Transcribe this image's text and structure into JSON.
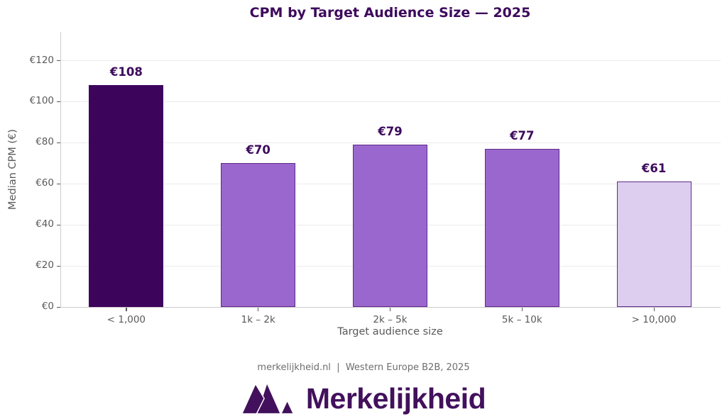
{
  "chart_data": {
    "type": "bar",
    "title": "CPM by Target Audience Size — 2025",
    "categories": [
      "< 1,000",
      "1k – 2k",
      "2k – 5k",
      "5k – 10k",
      "> 10,000"
    ],
    "values": [
      108,
      70,
      79,
      77,
      61
    ],
    "data_labels": [
      "€108",
      "€70",
      "€79",
      "€77",
      "€61"
    ],
    "xlabel": "Target audience size",
    "ylabel": "Median CPM (€)",
    "ylim": [
      0,
      134
    ],
    "yticks": [
      {
        "value": 0,
        "label": "€0"
      },
      {
        "value": 20,
        "label": "€20"
      },
      {
        "value": 40,
        "label": "€40"
      },
      {
        "value": 60,
        "label": "€60"
      },
      {
        "value": 80,
        "label": "€80"
      },
      {
        "value": 100,
        "label": "€100"
      },
      {
        "value": 120,
        "label": "€120"
      }
    ],
    "grid": "horizontal",
    "legend": "none",
    "bar_fill_colors": [
      "#3d045c",
      "#9a67ce",
      "#9a67ce",
      "#9a67ce",
      "#ddcdee"
    ],
    "bar_edge_colors": [
      "#3d045c",
      "#5e2b8a",
      "#5e2b8a",
      "#5e2b8a",
      "#5e2b8a"
    ]
  },
  "footer": {
    "source": "merkelijkheid.nl  |  Western Europe B2B, 2025"
  },
  "logo": {
    "text": "Merkelijkheid",
    "icon": "mountain-m-logo"
  },
  "colors": {
    "title": "#3d0a5c",
    "value_label": "#3d0a5c",
    "axis_text": "#595959",
    "grid": "#eaeaea",
    "spine": "#cccccc",
    "footer_text": "#6e6e6e",
    "logo": "#42105c"
  }
}
